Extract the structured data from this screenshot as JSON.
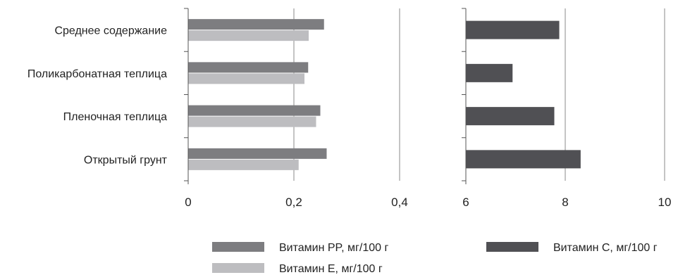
{
  "chart_data": [
    {
      "type": "bar",
      "orientation": "horizontal",
      "categories": [
        "Среднее содержание",
        "Поликарбонатная теплица",
        "Пленочная теплица",
        "Открытый грунт"
      ],
      "series": [
        {
          "name": "Витамин PP, мг/100 г",
          "values": [
            0.257,
            0.227,
            0.25,
            0.262
          ],
          "color": "#7d7d80"
        },
        {
          "name": "Витамин Е, мг/100 г",
          "values": [
            0.228,
            0.22,
            0.242,
            0.209
          ],
          "color": "#bdbdc0"
        }
      ],
      "xlim": [
        0,
        0.4
      ],
      "xticks": [
        "0",
        "0,2",
        "0,4"
      ],
      "grid": true
    },
    {
      "type": "bar",
      "orientation": "horizontal",
      "categories": [
        "Среднее содержание",
        "Поликарбонатная теплица",
        "Пленочная теплица",
        "Открытый грунт"
      ],
      "series": [
        {
          "name": "Витамин С, мг/100 г",
          "values": [
            7.88,
            6.94,
            7.78,
            8.31
          ],
          "color": "#505054"
        }
      ],
      "xlim": [
        6,
        10
      ],
      "xticks": [
        "6",
        "8",
        "10"
      ],
      "grid": true
    }
  ]
}
